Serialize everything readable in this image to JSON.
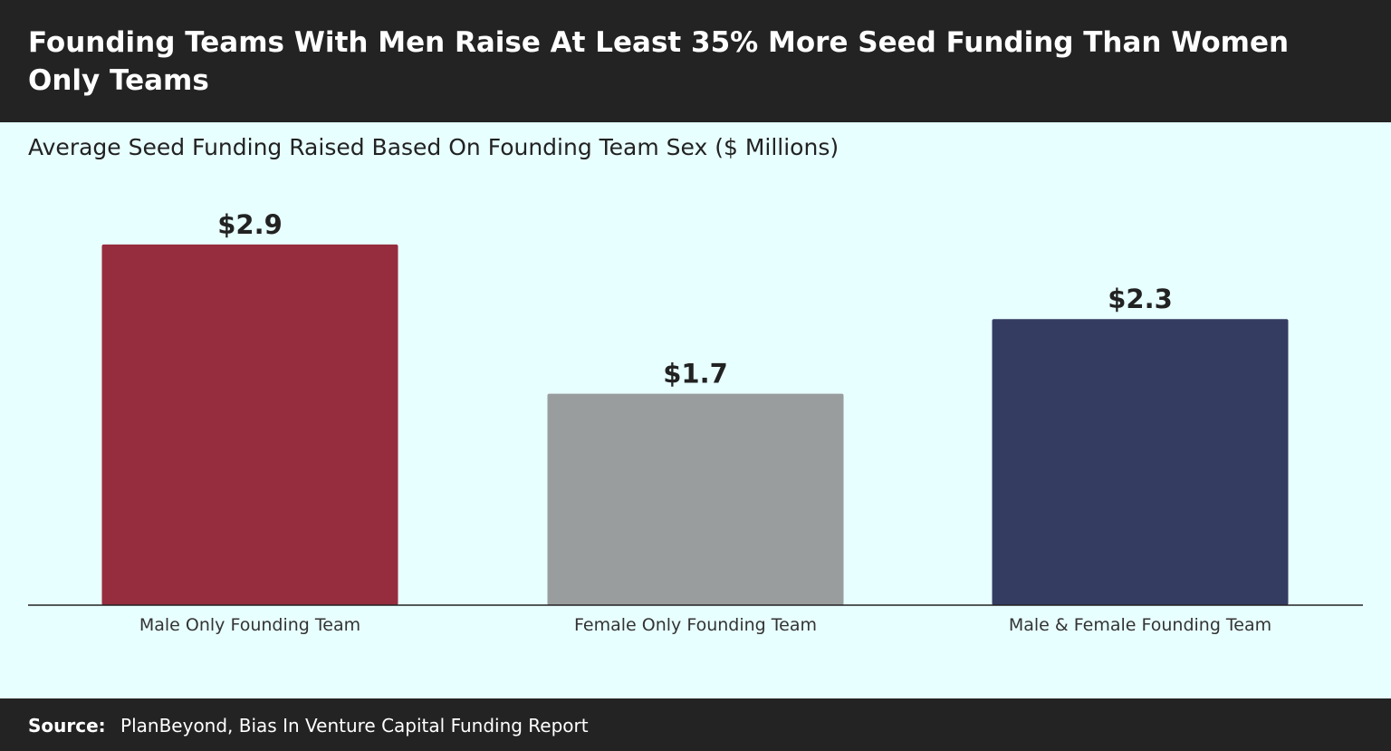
{
  "header": {
    "title": "Founding Teams With Men Raise At Least 35% More Seed Funding Than Women Only Teams"
  },
  "chart_data": {
    "type": "bar",
    "title": "Founding Teams With Men Raise At Least 35% More Seed Funding Than Women Only Teams",
    "subtitle": "Average Seed Funding Raised Based On Founding Team Sex ($ Millions)",
    "categories": [
      "Male Only Founding Team",
      "Female Only Founding Team",
      "Male & Female Founding Team"
    ],
    "values": [
      2.9,
      1.7,
      2.3
    ],
    "data_labels": [
      "$2.9",
      "$1.7",
      "$2.3"
    ],
    "colors": [
      "#952d3e",
      "#9a9d9e",
      "#353c61"
    ],
    "xlabel": "",
    "ylabel": "",
    "ylim": [
      0,
      3.0
    ],
    "grid": false,
    "legend": "none"
  },
  "footer": {
    "source_label": "Source:",
    "source_text": "PlanBeyond, Bias In Venture Capital Funding Report"
  }
}
